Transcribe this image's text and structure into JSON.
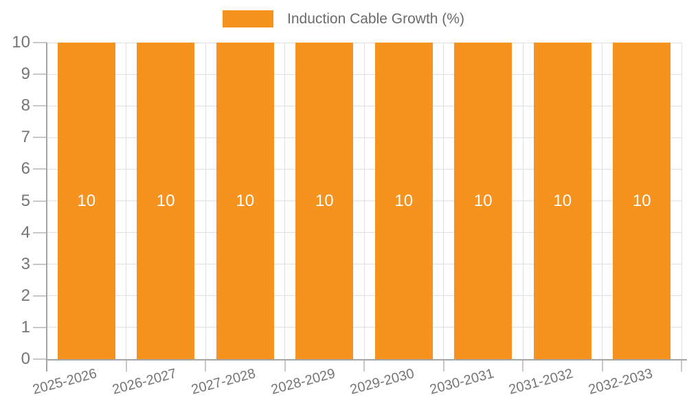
{
  "legend": {
    "label": "Induction Cable Growth (%)"
  },
  "chart_data": {
    "type": "bar",
    "title": "Induction Cable Growth (%)",
    "categories": [
      "2025-2026",
      "2026-2027",
      "2027-2028",
      "2028-2029",
      "2029-2030",
      "2030-2031",
      "2031-2032",
      "2032-2033"
    ],
    "series": [
      {
        "name": "Induction Cable Growth (%)",
        "values": [
          10,
          10,
          10,
          10,
          10,
          10,
          10,
          10
        ]
      }
    ],
    "bar_value_labels": [
      "10",
      "10",
      "10",
      "10",
      "10",
      "10",
      "10",
      "10"
    ],
    "xlabel": "",
    "ylabel": "",
    "ylim": [
      0,
      10
    ],
    "yticks": [
      0,
      1,
      2,
      3,
      4,
      5,
      6,
      7,
      8,
      9,
      10
    ],
    "grid": true,
    "legend_position": "top-center",
    "x_label_rotation_deg": -15,
    "colors": {
      "bar": "#F6921E",
      "bar_value_label": "#FFFFFF",
      "axis_line": "#A5A5A5",
      "gridline": "#E0E0E0",
      "tick": "#C8C8C8",
      "axis_text": "#757575",
      "legend_text": "#6B6B6B",
      "background": "#FFFFFF"
    }
  }
}
